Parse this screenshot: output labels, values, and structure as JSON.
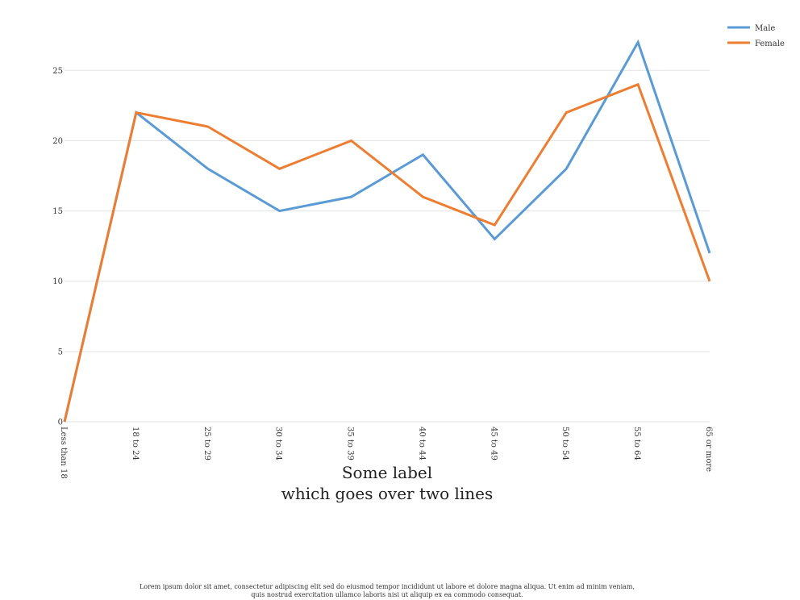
{
  "chart_data": {
    "type": "line",
    "categories": [
      "Less than 18",
      "18 to 24",
      "25 to 29",
      "30 to 34",
      "35 to 39",
      "40 to 44",
      "45 to 49",
      "50 to 54",
      "55 to 64",
      "65 or more"
    ],
    "series": [
      {
        "name": "Male",
        "values": [
          0,
          22,
          18,
          15,
          16,
          19,
          13,
          18,
          27,
          12
        ],
        "color": "#5b9bd5"
      },
      {
        "name": "Female",
        "values": [
          0,
          22,
          21,
          18,
          20,
          16,
          14,
          22,
          24,
          10
        ],
        "color": "#ed7d31"
      }
    ],
    "title": "",
    "xlabel": [
      "Some label",
      "which goes over two lines"
    ],
    "ylabel": "",
    "ylim": [
      0,
      28
    ],
    "yticks": [
      0,
      5,
      10,
      15,
      20,
      25
    ],
    "grid": true,
    "legend_position": "top-right"
  },
  "footnote": [
    "Lorem ipsum dolor sit amet, consectetur adipiscing elit sed do eiusmod tempor incididunt ut labore et dolore magna aliqua. Ut enim ad minim veniam,",
    "quis nostrud exercitation ullamco laboris nisi ut aliquip ex ea commodo consequat."
  ]
}
